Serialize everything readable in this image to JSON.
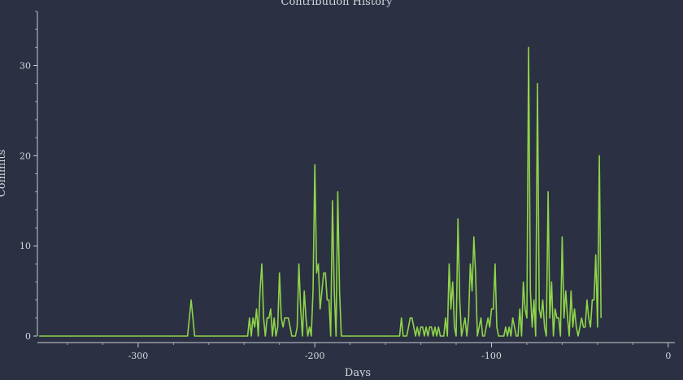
{
  "colors": {
    "background": "#2b3142",
    "line": "#8fd44a",
    "axis": "#c9ccd4",
    "text": "#d4d7de"
  },
  "chart_data": {
    "type": "line",
    "title": "Contribution History",
    "xlabel": "Days",
    "ylabel": "Commits",
    "xlim": [
      -357,
      1
    ],
    "ylim": [
      0,
      36
    ],
    "xticks": [
      -300,
      -200,
      -100,
      0
    ],
    "yticks": [
      0,
      10,
      20,
      30
    ],
    "grid": false,
    "legend": "none",
    "series": [
      {
        "points": [
          [
            -356,
            0
          ],
          [
            -272,
            0
          ],
          [
            -270,
            4
          ],
          [
            -268,
            0
          ],
          [
            -238,
            0
          ],
          [
            -237,
            2
          ],
          [
            -236,
            0
          ],
          [
            -235,
            2
          ],
          [
            -234,
            1
          ],
          [
            -233,
            3
          ],
          [
            -232,
            0
          ],
          [
            -231,
            5
          ],
          [
            -230,
            8
          ],
          [
            -229,
            2
          ],
          [
            -228,
            0
          ],
          [
            -227,
            2
          ],
          [
            -226,
            2
          ],
          [
            -225,
            3
          ],
          [
            -224,
            0
          ],
          [
            -223,
            2
          ],
          [
            -222,
            0
          ],
          [
            -221,
            1
          ],
          [
            -220,
            7
          ],
          [
            -219,
            2
          ],
          [
            -218,
            1
          ],
          [
            -217,
            2
          ],
          [
            -216,
            2
          ],
          [
            -215,
            2
          ],
          [
            -214,
            1
          ],
          [
            -213,
            0
          ],
          [
            -212,
            0
          ],
          [
            -211,
            0
          ],
          [
            -210,
            1
          ],
          [
            -209,
            8
          ],
          [
            -208,
            3
          ],
          [
            -207,
            0
          ],
          [
            -206,
            5
          ],
          [
            -205,
            2
          ],
          [
            -204,
            0
          ],
          [
            -203,
            1
          ],
          [
            -202,
            0
          ],
          [
            -201,
            5
          ],
          [
            -200,
            19
          ],
          [
            -199,
            7
          ],
          [
            -198,
            8
          ],
          [
            -197,
            3
          ],
          [
            -196,
            5
          ],
          [
            -195,
            7
          ],
          [
            -194,
            7
          ],
          [
            -193,
            4
          ],
          [
            -192,
            4
          ],
          [
            -191,
            0
          ],
          [
            -190,
            15
          ],
          [
            -189,
            5
          ],
          [
            -188,
            0
          ],
          [
            -187,
            16
          ],
          [
            -186,
            5
          ],
          [
            -185,
            0
          ],
          [
            -184,
            0
          ],
          [
            -152,
            0
          ],
          [
            -151,
            2
          ],
          [
            -150,
            0
          ],
          [
            -149,
            0
          ],
          [
            -148,
            0
          ],
          [
            -147,
            1
          ],
          [
            -146,
            2
          ],
          [
            -145,
            2
          ],
          [
            -144,
            1
          ],
          [
            -143,
            0
          ],
          [
            -142,
            1
          ],
          [
            -141,
            0
          ],
          [
            -140,
            1
          ],
          [
            -139,
            1
          ],
          [
            -138,
            0
          ],
          [
            -137,
            1
          ],
          [
            -136,
            0
          ],
          [
            -135,
            1
          ],
          [
            -134,
            1
          ],
          [
            -133,
            0
          ],
          [
            -132,
            1
          ],
          [
            -131,
            0
          ],
          [
            -130,
            1
          ],
          [
            -129,
            0
          ],
          [
            -127,
            0
          ],
          [
            -126,
            2
          ],
          [
            -125,
            0
          ],
          [
            -124,
            8
          ],
          [
            -123,
            3
          ],
          [
            -122,
            6
          ],
          [
            -121,
            1
          ],
          [
            -120,
            0
          ],
          [
            -119,
            13
          ],
          [
            -118,
            4
          ],
          [
            -117,
            0
          ],
          [
            -116,
            1
          ],
          [
            -115,
            2
          ],
          [
            -114,
            0
          ],
          [
            -113,
            2
          ],
          [
            -112,
            8
          ],
          [
            -111,
            5
          ],
          [
            -110,
            11
          ],
          [
            -109,
            7
          ],
          [
            -108,
            0
          ],
          [
            -107,
            1
          ],
          [
            -106,
            2
          ],
          [
            -105,
            0
          ],
          [
            -104,
            0
          ],
          [
            -103,
            1
          ],
          [
            -102,
            2
          ],
          [
            -101,
            1
          ],
          [
            -100,
            3
          ],
          [
            -99,
            3
          ],
          [
            -98,
            8
          ],
          [
            -97,
            1
          ],
          [
            -96,
            0
          ],
          [
            -95,
            0
          ],
          [
            -93,
            0
          ],
          [
            -92,
            1
          ],
          [
            -91,
            0
          ],
          [
            -90,
            1
          ],
          [
            -89,
            0
          ],
          [
            -88,
            2
          ],
          [
            -87,
            1
          ],
          [
            -86,
            0
          ],
          [
            -85,
            0
          ],
          [
            -84,
            3
          ],
          [
            -83,
            0
          ],
          [
            -82,
            6
          ],
          [
            -81,
            3
          ],
          [
            -80,
            2
          ],
          [
            -79,
            32
          ],
          [
            -78,
            5
          ],
          [
            -77,
            1
          ],
          [
            -76,
            4
          ],
          [
            -75,
            0
          ],
          [
            -74,
            28
          ],
          [
            -73,
            3
          ],
          [
            -72,
            2
          ],
          [
            -71,
            4
          ],
          [
            -70,
            1
          ],
          [
            -69,
            0
          ],
          [
            -68,
            16
          ],
          [
            -67,
            2
          ],
          [
            -66,
            6
          ],
          [
            -65,
            0
          ],
          [
            -64,
            3
          ],
          [
            -63,
            2
          ],
          [
            -62,
            2
          ],
          [
            -61,
            0
          ],
          [
            -60,
            11
          ],
          [
            -59,
            2
          ],
          [
            -58,
            5
          ],
          [
            -57,
            2
          ],
          [
            -56,
            0
          ],
          [
            -55,
            5
          ],
          [
            -54,
            1
          ],
          [
            -53,
            3
          ],
          [
            -52,
            1
          ],
          [
            -51,
            0
          ],
          [
            -50,
            1
          ],
          [
            -49,
            2
          ],
          [
            -48,
            1
          ],
          [
            -47,
            1
          ],
          [
            -46,
            4
          ],
          [
            -45,
            2
          ],
          [
            -44,
            1
          ],
          [
            -43,
            4
          ],
          [
            -42,
            4
          ],
          [
            -41,
            9
          ],
          [
            -40,
            1
          ],
          [
            -39,
            20
          ],
          [
            -38,
            2
          ]
        ]
      }
    ]
  }
}
